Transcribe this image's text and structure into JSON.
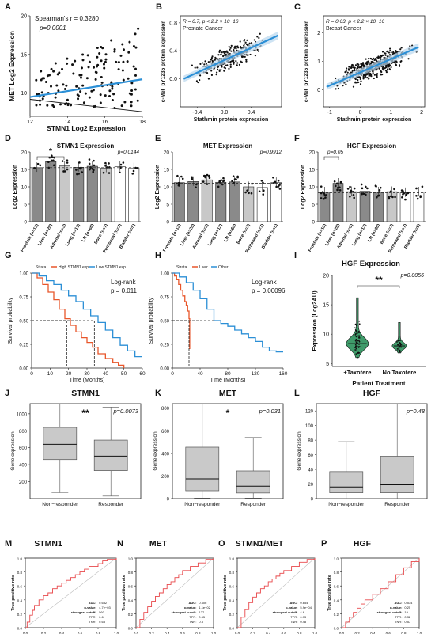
{
  "figure": {
    "panel_letters": [
      "A",
      "B",
      "C",
      "D",
      "E",
      "F",
      "G",
      "H",
      "I",
      "J",
      "K",
      "L",
      "M",
      "N",
      "O",
      "P"
    ]
  },
  "colors": {
    "blue": "#2b8fd6",
    "red": "#e8562a",
    "gray": "#c9c9c9",
    "black": "#111111"
  },
  "chart_data": [
    {
      "panel": "A",
      "type": "scatter",
      "xlabel": "STMN1 Log2 Expression",
      "ylabel": "MET Log2 Expression",
      "xlim": [
        12,
        18
      ],
      "ylim": [
        7,
        20
      ],
      "xticks": [
        "12",
        "14",
        "16",
        "18"
      ],
      "yticks": [
        "10",
        "15",
        "20"
      ],
      "annotations": [
        "Spearman's r = 0.3280",
        "p=0.0001"
      ],
      "fit_lines": [
        {
          "x": [
            12,
            18
          ],
          "y": [
            9.5,
            11.8
          ],
          "color": "blue"
        },
        {
          "x": [
            12,
            18
          ],
          "y": [
            9.2,
            7.6
          ],
          "color": "black"
        }
      ]
    },
    {
      "panel": "B",
      "type": "scatter",
      "xlabel": "Stathmin protein expression",
      "ylabel": "c-Met_pY1235 protein expression",
      "xlim": [
        -0.65,
        0.85
      ],
      "ylim": [
        -0.4,
        0.9
      ],
      "xticks": [
        "-0.4",
        "0.0",
        "0.4"
      ],
      "yticks": [
        "0.0",
        "0.4",
        "0.8"
      ],
      "annotations": [
        "R = 0.7, p < 2.2 × 10−16",
        "Prostate Cancer"
      ],
      "fit_lines": [
        {
          "x": [
            -0.6,
            0.8
          ],
          "y": [
            0.0,
            0.62
          ],
          "color": "blue"
        }
      ]
    },
    {
      "panel": "C",
      "type": "scatter",
      "xlabel": "Stathmin protein expression",
      "ylabel": "c-Met_pY1235 protein expression",
      "xlim": [
        -1.2,
        2.1
      ],
      "ylim": [
        -0.6,
        2.6
      ],
      "xticks": [
        "-1",
        "0",
        "1",
        "2"
      ],
      "yticks": [
        "0",
        "1",
        "2"
      ],
      "annotations": [
        "R = 0.63, p < 2.2 × 10−16",
        "Breast Cancer"
      ],
      "fit_lines": [
        {
          "x": [
            -1.1,
            1.9
          ],
          "y": [
            0.1,
            1.5
          ],
          "color": "blue"
        }
      ]
    },
    {
      "panel": "D",
      "type": "bar",
      "title": "STMN1 Expression",
      "ylabel": "Log2 Expression",
      "categories": [
        "Prostate (n=13)",
        "Liver (n=20)",
        "Adrenal (n=3)",
        "Lung (n=13)",
        "LN (n=60)",
        "Bone (n=7)",
        "Peritoneal (n=7)",
        "Bladder (n=5)"
      ],
      "values": [
        15.5,
        17.2,
        16.0,
        15.6,
        15.9,
        15.4,
        15.8,
        15.4
      ],
      "ylim": [
        0,
        20
      ],
      "yticks": [
        "0",
        "5",
        "10",
        "15",
        "20"
      ],
      "annotations": [
        "p=0.0144",
        "*"
      ],
      "bar_colors": [
        "#8a8a8a",
        "#8a8a8a",
        "#c8c8c8",
        "#8a8a8a",
        "#8a8a8a",
        "#c8c8c8",
        "#ffffff",
        "#ffffff"
      ]
    },
    {
      "panel": "E",
      "type": "bar",
      "title": "MET Expression",
      "ylabel": "Log2 Expression",
      "categories": [
        "Prostate (n=13)",
        "Liver (n=20)",
        "Adrenal (n=3)",
        "Lung (n=13)",
        "LN (n=60)",
        "Bone (n=7)",
        "Peritoneal (n=7)",
        "Bladder (n=5)"
      ],
      "values": [
        11.2,
        11.5,
        12.0,
        11.3,
        11.4,
        10.0,
        9.8,
        11.2
      ],
      "ylim": [
        0,
        20
      ],
      "yticks": [
        "0",
        "5",
        "10",
        "15",
        "20"
      ],
      "annotations": [
        "p=0.9912"
      ],
      "bar_colors": [
        "#8a8a8a",
        "#8a8a8a",
        "#c8c8c8",
        "#8a8a8a",
        "#8a8a8a",
        "#c8c8c8",
        "#ffffff",
        "#ffffff"
      ]
    },
    {
      "panel": "F",
      "type": "bar",
      "title": "HGF Expression",
      "ylabel": "Log2 Expression",
      "categories": [
        "Prostate (n=13)",
        "Liver (n=20)",
        "Adrenal (n=3)",
        "Lung (n=13)",
        "LN (n=60)",
        "Bone (n=7)",
        "Peritoneal (n=7)",
        "Bladder (n=5)"
      ],
      "values": [
        8.5,
        11.0,
        8.6,
        8.7,
        8.5,
        8.6,
        8.3,
        8.5
      ],
      "ylim": [
        0,
        20
      ],
      "yticks": [
        "0",
        "5",
        "10",
        "15",
        "20"
      ],
      "annotations": [
        "p=0.05"
      ],
      "bar_colors": [
        "#8a8a8a",
        "#8a8a8a",
        "#c8c8c8",
        "#8a8a8a",
        "#8a8a8a",
        "#c8c8c8",
        "#ffffff",
        "#ffffff"
      ]
    },
    {
      "panel": "G",
      "type": "line",
      "xlabel": "Time (Months)",
      "ylabel": "Survival probability",
      "xlim": [
        0,
        60
      ],
      "ylim": [
        0,
        1
      ],
      "xticks": [
        "0",
        "10",
        "20",
        "30",
        "40",
        "50",
        "60"
      ],
      "yticks": [
        "0.00",
        "0.25",
        "0.50",
        "0.75",
        "1.00"
      ],
      "legend_title": "Strata",
      "series": [
        {
          "name": "High STMN1 exp",
          "color": "red",
          "x": [
            0,
            3,
            6,
            9,
            12,
            15,
            18,
            21,
            24,
            27,
            30,
            33,
            36,
            40,
            44,
            47,
            50
          ],
          "y": [
            1,
            0.95,
            0.88,
            0.8,
            0.72,
            0.62,
            0.52,
            0.45,
            0.38,
            0.32,
            0.27,
            0.22,
            0.15,
            0.1,
            0.06,
            0.03,
            0
          ]
        },
        {
          "name": "Low STMN1 exp",
          "color": "blue",
          "x": [
            0,
            4,
            8,
            12,
            16,
            20,
            24,
            28,
            32,
            36,
            40,
            44,
            48,
            52,
            56,
            60
          ],
          "y": [
            1,
            0.97,
            0.92,
            0.88,
            0.82,
            0.76,
            0.7,
            0.62,
            0.55,
            0.48,
            0.4,
            0.32,
            0.24,
            0.18,
            0.12,
            0.12
          ]
        }
      ],
      "annotations": [
        "Log-rank",
        "p = 0.011"
      ],
      "median_lines": [
        {
          "x": 19,
          "y": 0.5
        },
        {
          "x": 34,
          "y": 0.5
        }
      ]
    },
    {
      "panel": "H",
      "type": "line",
      "xlabel": "Time (Months)",
      "ylabel": "Survival probability",
      "xlim": [
        0,
        160
      ],
      "ylim": [
        0,
        1
      ],
      "xticks": [
        "0",
        "40",
        "80",
        "120",
        "160"
      ],
      "yticks": [
        "0.00",
        "0.25",
        "0.50",
        "0.75",
        "1.00"
      ],
      "legend_title": "Strata",
      "series": [
        {
          "name": "Liver",
          "color": "red",
          "x": [
            0,
            3,
            6,
            9,
            12,
            15,
            18,
            20,
            22,
            24,
            25
          ],
          "y": [
            1,
            0.97,
            0.93,
            0.88,
            0.82,
            0.76,
            0.7,
            0.66,
            0.6,
            0.52,
            0.2
          ]
        },
        {
          "name": "Other",
          "color": "blue",
          "x": [
            0,
            10,
            20,
            30,
            40,
            50,
            60,
            70,
            80,
            90,
            100,
            110,
            120,
            130,
            140,
            150,
            160
          ],
          "y": [
            1,
            0.96,
            0.9,
            0.82,
            0.73,
            0.62,
            0.5,
            0.47,
            0.44,
            0.4,
            0.36,
            0.32,
            0.28,
            0.22,
            0.18,
            0.17,
            0.17
          ]
        }
      ],
      "annotations": [
        "Log-rank",
        "p = 0.00096"
      ],
      "median_lines": [
        {
          "x": 24,
          "y": 0.5
        },
        {
          "x": 60,
          "y": 0.5
        }
      ]
    },
    {
      "panel": "I",
      "type": "violin",
      "title": "HGF Expression",
      "ylabel": "Expression (Log2AU)",
      "xlabel": "Patient Treatment",
      "categories": [
        "+Taxotere",
        "No Taxotere"
      ],
      "ylim": [
        4.5,
        20
      ],
      "yticks": [
        "5",
        "10",
        "15",
        "20"
      ],
      "annotations": [
        "p=0.0056",
        "**"
      ],
      "medians": [
        8.4,
        8.0
      ],
      "ranges": [
        [
          6.0,
          16.2
        ],
        [
          6.8,
          12.0
        ]
      ]
    },
    {
      "panel": "J",
      "type": "box",
      "title": "STMN1",
      "ylabel": "Gene expression",
      "categories": [
        "Non−responder",
        "Responder"
      ],
      "ylim": [
        0,
        1120
      ],
      "yticks": [
        "200",
        "400",
        "600",
        "800",
        "1000"
      ],
      "annotations": [
        "p=0.0073",
        "**"
      ],
      "boxes": [
        {
          "min": 70,
          "q1": 460,
          "median": 640,
          "q3": 840,
          "max": 1120
        },
        {
          "min": 30,
          "q1": 330,
          "median": 500,
          "q3": 690,
          "max": 1080
        }
      ]
    },
    {
      "panel": "K",
      "type": "box",
      "title": "MET",
      "ylabel": "Gene expression",
      "categories": [
        "Non−responder",
        "Responder"
      ],
      "ylim": [
        0,
        840
      ],
      "yticks": [
        "0",
        "200",
        "400",
        "600",
        "800"
      ],
      "annotations": [
        "p=0.031",
        "*"
      ],
      "boxes": [
        {
          "min": 5,
          "q1": 70,
          "median": 175,
          "q3": 455,
          "max": 840
        },
        {
          "min": 5,
          "q1": 50,
          "median": 110,
          "q3": 245,
          "max": 540
        }
      ]
    },
    {
      "panel": "L",
      "type": "box",
      "title": "HGF",
      "ylabel": "Gene expression",
      "categories": [
        "Non−responder",
        "Responder"
      ],
      "ylim": [
        0,
        130
      ],
      "yticks": [
        "0",
        "20",
        "40",
        "60",
        "80",
        "100",
        "120"
      ],
      "annotations": [
        "p=0.48"
      ],
      "boxes": [
        {
          "min": 0,
          "q1": 8,
          "median": 16,
          "q3": 37,
          "max": 78
        },
        {
          "min": 0,
          "q1": 8,
          "median": 19,
          "q3": 58,
          "max": 130
        }
      ]
    },
    {
      "panel": "M",
      "type": "line",
      "title": "STMN1",
      "xlabel": "False positive rate",
      "ylabel": "True positive rate",
      "xlim": [
        0,
        1
      ],
      "ylim": [
        0,
        1
      ],
      "xticks": [
        "0.0",
        "0.2",
        "0.4",
        "0.6",
        "0.8",
        "1.0"
      ],
      "yticks": [
        "0.0",
        "0.2",
        "0.4",
        "0.6",
        "0.8",
        "1.0"
      ],
      "series": [
        {
          "x": [
            0,
            0.02,
            0.05,
            0.08,
            0.1,
            0.15,
            0.2,
            0.25,
            0.3,
            0.35,
            0.4,
            0.45,
            0.5,
            0.55,
            0.6,
            0.65,
            0.7,
            0.8,
            0.85,
            0.9,
            1.0
          ],
          "y": [
            0,
            0.08,
            0.18,
            0.25,
            0.32,
            0.4,
            0.46,
            0.5,
            0.56,
            0.6,
            0.64,
            0.68,
            0.72,
            0.76,
            0.8,
            0.84,
            0.88,
            0.92,
            0.96,
            0.98,
            1.0
          ]
        }
      ],
      "stats": [
        [
          "AUC:",
          "0.632"
        ],
        [
          "p-value:",
          "4.7e−03"
        ],
        [
          "strongest cutoff:",
          "560"
        ],
        [
          "TPR:",
          "0.6"
        ],
        [
          "TNR:",
          "0.63"
        ]
      ]
    },
    {
      "panel": "N",
      "type": "line",
      "title": "MET",
      "xlabel": "False positive rate",
      "ylabel": "True positive rate",
      "xlim": [
        0,
        1
      ],
      "ylim": [
        0,
        1
      ],
      "xticks": [
        "0.0",
        "0.2",
        "0.4",
        "0.6",
        "0.8",
        "1.0"
      ],
      "yticks": [
        "0.0",
        "0.2",
        "0.4",
        "0.6",
        "0.8",
        "1.0"
      ],
      "series": [
        {
          "x": [
            0,
            0.05,
            0.1,
            0.15,
            0.2,
            0.25,
            0.3,
            0.35,
            0.4,
            0.45,
            0.5,
            0.55,
            0.6,
            0.7,
            0.8,
            0.9,
            1.0
          ],
          "y": [
            0,
            0.12,
            0.22,
            0.3,
            0.38,
            0.45,
            0.5,
            0.56,
            0.62,
            0.66,
            0.72,
            0.76,
            0.82,
            0.88,
            0.93,
            0.98,
            1.0
          ]
        }
      ],
      "stats": [
        [
          "AUC:",
          "0.606"
        ],
        [
          "p-value:",
          "1.1e−02"
        ],
        [
          "strongest cutoff:",
          "127"
        ],
        [
          "TPR:",
          "0.65"
        ],
        [
          "TNR:",
          "0.5"
        ]
      ]
    },
    {
      "panel": "O",
      "type": "line",
      "title": "STMN1/MET",
      "xlabel": "False positive rate",
      "ylabel": "True positive rate",
      "xlim": [
        0,
        1
      ],
      "ylim": [
        0,
        1
      ],
      "xticks": [
        "0.0",
        "0.2",
        "0.4",
        "0.6",
        "0.8",
        "1.0"
      ],
      "yticks": [
        "0.0",
        "0.2",
        "0.4",
        "0.6",
        "0.8",
        "1.0"
      ],
      "series": [
        {
          "x": [
            0,
            0.05,
            0.1,
            0.15,
            0.2,
            0.25,
            0.3,
            0.35,
            0.4,
            0.45,
            0.5,
            0.55,
            0.6,
            0.7,
            0.8,
            0.9,
            1.0
          ],
          "y": [
            0,
            0.15,
            0.26,
            0.36,
            0.44,
            0.5,
            0.56,
            0.6,
            0.66,
            0.7,
            0.74,
            0.78,
            0.82,
            0.88,
            0.94,
            0.98,
            1.0
          ]
        }
      ],
      "stats": [
        [
          "AUC:",
          "0.654"
        ],
        [
          "p-value:",
          "5.9e−04"
        ],
        [
          "strongest cutoff:",
          "4.6"
        ],
        [
          "TPR:",
          "0.73"
        ],
        [
          "TNR:",
          "0.48"
        ]
      ]
    },
    {
      "panel": "P",
      "type": "line",
      "title": "HGF",
      "xlabel": "False positive rate",
      "ylabel": "True positive rate",
      "xlim": [
        0,
        1
      ],
      "ylim": [
        0,
        1
      ],
      "xticks": [
        "0.0",
        "0.2",
        "0.4",
        "0.6",
        "0.8",
        "1.0"
      ],
      "yticks": [
        "0.0",
        "0.2",
        "0.4",
        "0.6",
        "0.8",
        "1.0"
      ],
      "series": [
        {
          "x": [
            0,
            0.05,
            0.1,
            0.15,
            0.2,
            0.25,
            0.3,
            0.4,
            0.5,
            0.6,
            0.7,
            0.8,
            0.9,
            1.0
          ],
          "y": [
            0,
            0.08,
            0.15,
            0.22,
            0.28,
            0.34,
            0.4,
            0.48,
            0.56,
            0.66,
            0.76,
            0.86,
            0.95,
            1.0
          ]
        }
      ],
      "stats": [
        [
          "AUC:",
          "0.534"
        ],
        [
          "p-value:",
          "0.25"
        ],
        [
          "strongest cutoff:",
          "19"
        ],
        [
          "TPR:",
          "0.32"
        ],
        [
          "TNR:",
          "0.57"
        ]
      ]
    }
  ]
}
